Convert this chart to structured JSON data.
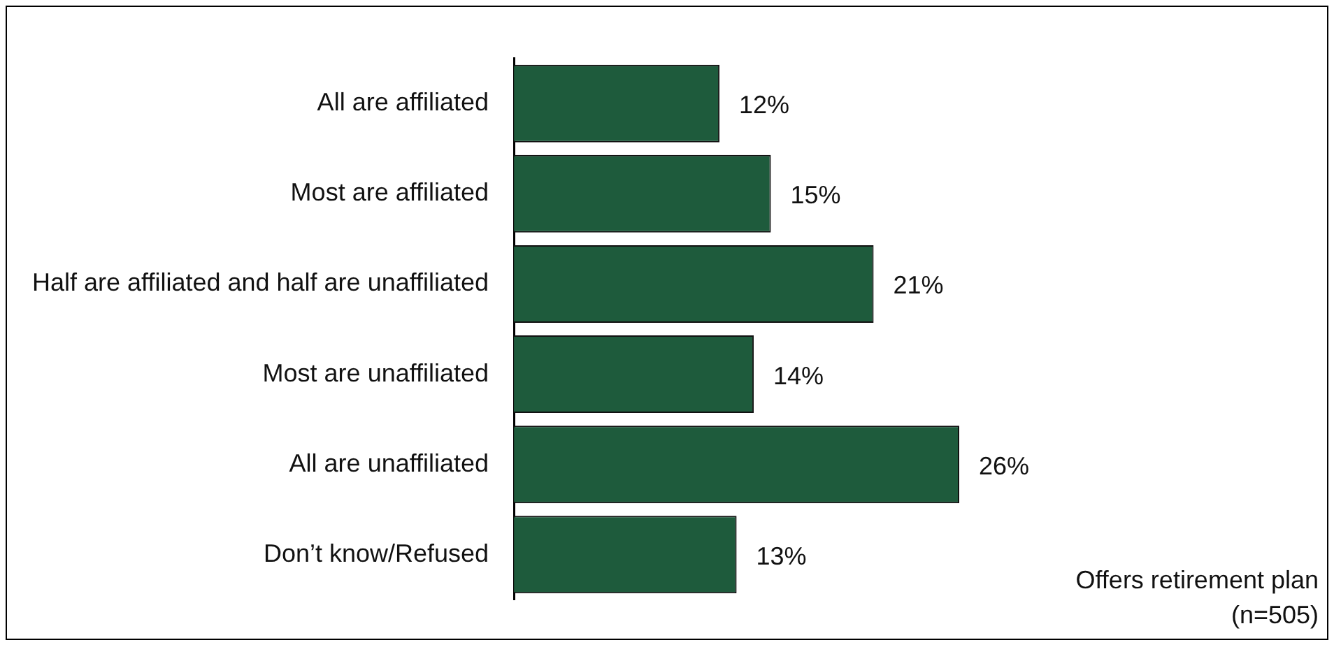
{
  "chart_data": {
    "type": "bar",
    "orientation": "horizontal",
    "categories": [
      "All are affiliated",
      "Most are affiliated",
      "Half are affiliated and half are unaffiliated",
      "Most are unaffiliated",
      "All are unaffiliated",
      "Don’t know/Refused"
    ],
    "values": [
      12,
      15,
      21,
      14,
      26,
      13
    ],
    "value_labels": [
      "12%",
      "15%",
      "21%",
      "14%",
      "26%",
      "13%"
    ],
    "color": "#1e5b3c",
    "annotations": [
      "Offers retirement plan\n(n=505)"
    ]
  }
}
